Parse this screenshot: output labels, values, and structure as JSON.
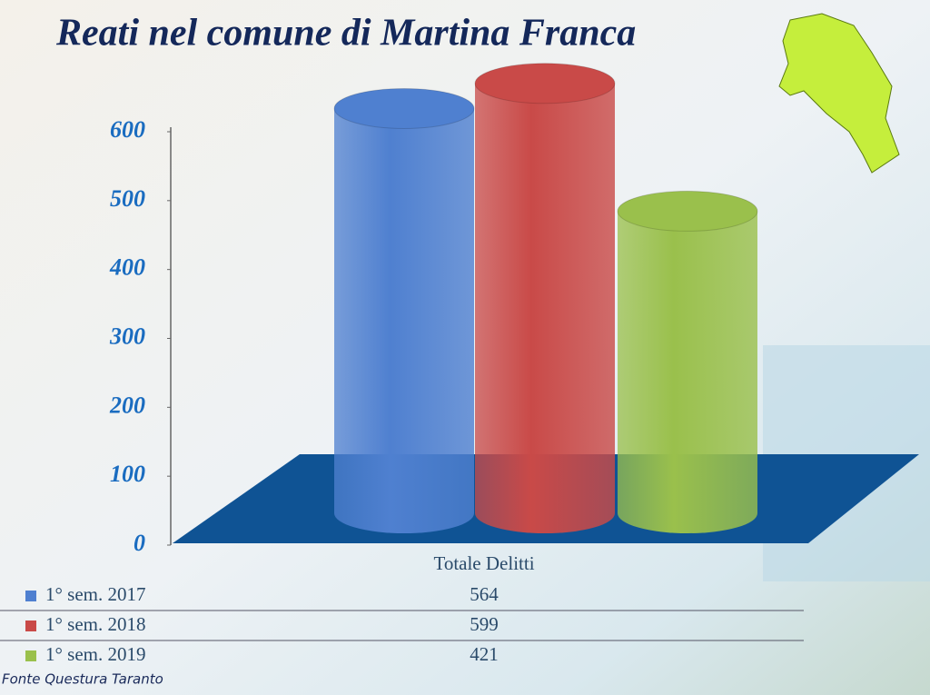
{
  "chart_data": {
    "type": "bar",
    "title": "Reati nel comune di Martina Franca",
    "categories": [
      "Totale Delitti"
    ],
    "series": [
      {
        "name": "1° sem. 2017",
        "color": "#4f80d0",
        "values": [
          564
        ]
      },
      {
        "name": "1° sem. 2018",
        "color": "#c94a48",
        "values": [
          599
        ]
      },
      {
        "name": "1° sem. 2019",
        "color": "#9ac04c",
        "values": [
          421
        ]
      }
    ],
    "ylim": [
      0,
      600
    ],
    "yticks": [
      0,
      100,
      200,
      300,
      400,
      500,
      600
    ],
    "source": "Fonte Questura Taranto"
  }
}
